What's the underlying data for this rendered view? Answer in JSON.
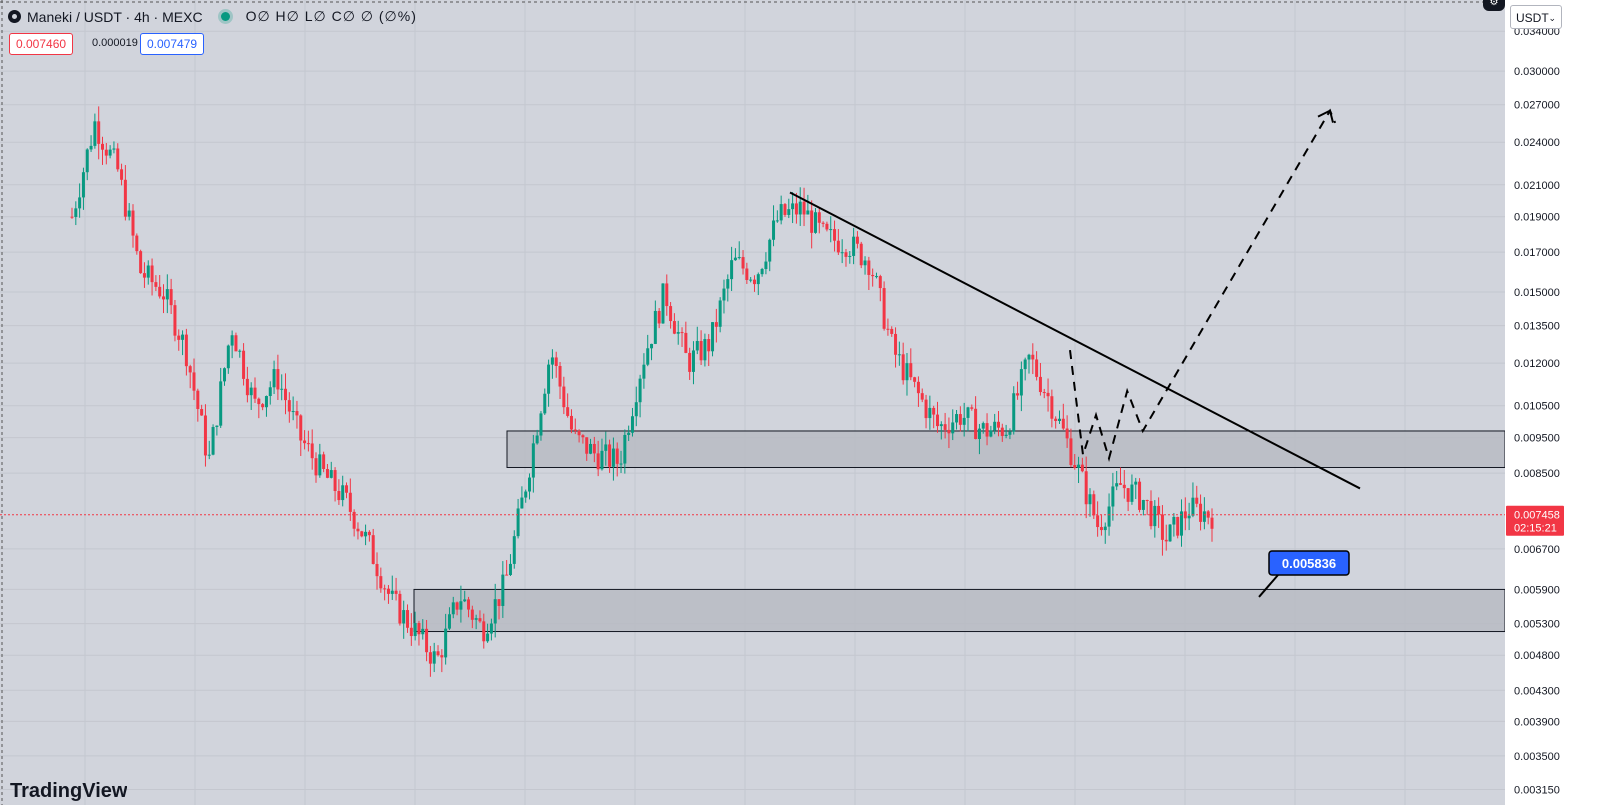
{
  "header": {
    "symbol": "Maneki",
    "quote": "USDT",
    "interval": "4h",
    "exchange": "MEXC",
    "symbol_line": "Maneki / USDT · 4h · MEXC",
    "ohlc_text": "O∅ H∅ L∅ C∅ ∅ (∅%)",
    "sell_price": "0.007460",
    "spread": "0.000019",
    "buy_price": "0.007479"
  },
  "toolbar": {
    "currency": "USDT",
    "chevron": "⌄",
    "settings_icon": "gear-icon"
  },
  "branding": {
    "logo_text": "TradingView"
  },
  "colors": {
    "up": "#089981",
    "down": "#f23645",
    "background": "#d1d4dc",
    "zone_fill": "#b8bbc3",
    "price_label_bg": "#f23645",
    "annotation_bg": "#2962ff"
  },
  "chart_data": {
    "type": "candlestick",
    "scale": "log",
    "ylim": [
      0.003,
      0.0375
    ],
    "y_ticks": [
      "0.034000",
      "0.030000",
      "0.027000",
      "0.024000",
      "0.021000",
      "0.019000",
      "0.017000",
      "0.015000",
      "0.013500",
      "0.012000",
      "0.010500",
      "0.009500",
      "0.008500",
      "0.007458",
      "0.006700",
      "0.005900",
      "0.005300",
      "0.004800",
      "0.004300",
      "0.003900",
      "0.003500",
      "0.003150"
    ],
    "y_tick_values": [
      0.034,
      0.03,
      0.027,
      0.024,
      0.021,
      0.019,
      0.017,
      0.015,
      0.0135,
      0.012,
      0.0105,
      0.0095,
      0.0085,
      0.007458,
      0.0067,
      0.0059,
      0.0053,
      0.0048,
      0.0043,
      0.0039,
      0.0035,
      0.00315
    ],
    "current_price": {
      "value": 0.007458,
      "label": "0.007458",
      "countdown": "02:15:21"
    },
    "zones": [
      {
        "top": 0.0097,
        "bottom": 0.00865
      },
      {
        "top": 0.0059,
        "bottom": 0.00517
      }
    ],
    "trendline": [
      [
        0.0205,
        0.0
      ],
      [
        0.0081,
        1.0
      ]
    ],
    "annotation": {
      "label": "0.005836",
      "value": 0.005836
    },
    "price_path": [
      0.019,
      0.0255,
      0.022,
      0.016,
      0.015,
      0.0125,
      0.0088,
      0.0135,
      0.0105,
      0.0115,
      0.0095,
      0.0085,
      0.0078,
      0.0068,
      0.0057,
      0.0052,
      0.0047,
      0.0058,
      0.0052,
      0.006,
      0.0085,
      0.0125,
      0.0095,
      0.009,
      0.0088,
      0.012,
      0.015,
      0.012,
      0.0128,
      0.0165,
      0.0158,
      0.019,
      0.0195,
      0.0178,
      0.0175,
      0.0165,
      0.0125,
      0.011,
      0.0098,
      0.0102,
      0.0097,
      0.0098,
      0.0122,
      0.0105,
      0.0088,
      0.0072,
      0.0082,
      0.0078,
      0.0069,
      0.0076,
      0.007458
    ],
    "projection": [
      [
        0.0125,
        0.0
      ],
      [
        0.009,
        0.05
      ],
      [
        0.0102,
        0.1
      ],
      [
        0.0089,
        0.15
      ],
      [
        0.011,
        0.22
      ],
      [
        0.0097,
        0.28
      ],
      [
        0.0265,
        1.0
      ],
      [
        0.0255,
        1.02
      ]
    ]
  }
}
